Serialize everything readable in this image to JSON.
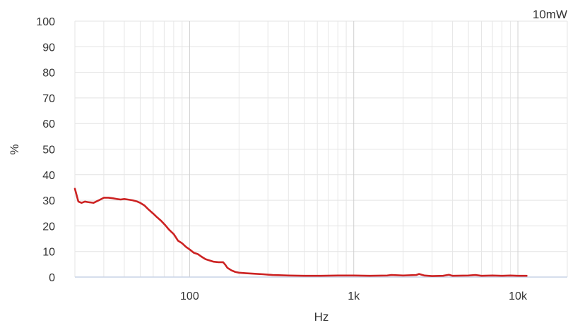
{
  "chart_data": {
    "type": "line",
    "title": "",
    "corner_label": "10mW",
    "xlabel": "Hz",
    "ylabel": "%",
    "x_scale": "log",
    "xlim": [
      20,
      20000
    ],
    "ylim": [
      0,
      100
    ],
    "x_ticks": [
      {
        "value": 100,
        "label": "100"
      },
      {
        "value": 1000,
        "label": "1k"
      },
      {
        "value": 10000,
        "label": "10k"
      }
    ],
    "y_ticks": [
      {
        "value": 0,
        "label": "0"
      },
      {
        "value": 10,
        "label": "10"
      },
      {
        "value": 20,
        "label": "20"
      },
      {
        "value": 30,
        "label": "30"
      },
      {
        "value": 40,
        "label": "40"
      },
      {
        "value": 50,
        "label": "50"
      },
      {
        "value": 60,
        "label": "60"
      },
      {
        "value": 70,
        "label": "70"
      },
      {
        "value": 80,
        "label": "80"
      },
      {
        "value": 90,
        "label": "90"
      },
      {
        "value": 100,
        "label": "100"
      }
    ],
    "grid": true,
    "line_color": "#cc2222",
    "series": [
      {
        "x": [
          20,
          21,
          22,
          23,
          24,
          26,
          28,
          30,
          32,
          34,
          36,
          38,
          40,
          42,
          45,
          48,
          50,
          53,
          56,
          60,
          63,
          67,
          71,
          75,
          80,
          85,
          90,
          95,
          100,
          106,
          112,
          118,
          125,
          132,
          140,
          150,
          160,
          165,
          170,
          180,
          190,
          200,
          220,
          250,
          280,
          320,
          360,
          400,
          500,
          630,
          800,
          1000,
          1250,
          1600,
          1700,
          2000,
          2400,
          2500,
          2700,
          3000,
          3500,
          3800,
          4000,
          5000,
          5500,
          6000,
          7000,
          8000,
          9000,
          10000,
          11300
        ],
        "y": [
          34.5,
          29.5,
          29.0,
          29.5,
          29.3,
          29.0,
          30.0,
          31.0,
          31.0,
          30.8,
          30.5,
          30.3,
          30.5,
          30.3,
          30.0,
          29.5,
          29.0,
          28.0,
          26.5,
          24.8,
          23.5,
          22.0,
          20.3,
          18.5,
          16.8,
          14.2,
          13.2,
          11.8,
          10.8,
          9.5,
          9.0,
          8.0,
          7.0,
          6.5,
          6.0,
          5.8,
          5.8,
          4.8,
          3.6,
          2.6,
          2.0,
          1.7,
          1.5,
          1.3,
          1.1,
          0.8,
          0.7,
          0.6,
          0.5,
          0.5,
          0.6,
          0.6,
          0.5,
          0.6,
          0.8,
          0.6,
          0.8,
          1.2,
          0.6,
          0.4,
          0.5,
          0.9,
          0.5,
          0.6,
          0.8,
          0.5,
          0.6,
          0.5,
          0.6,
          0.5,
          0.5
        ]
      }
    ]
  }
}
